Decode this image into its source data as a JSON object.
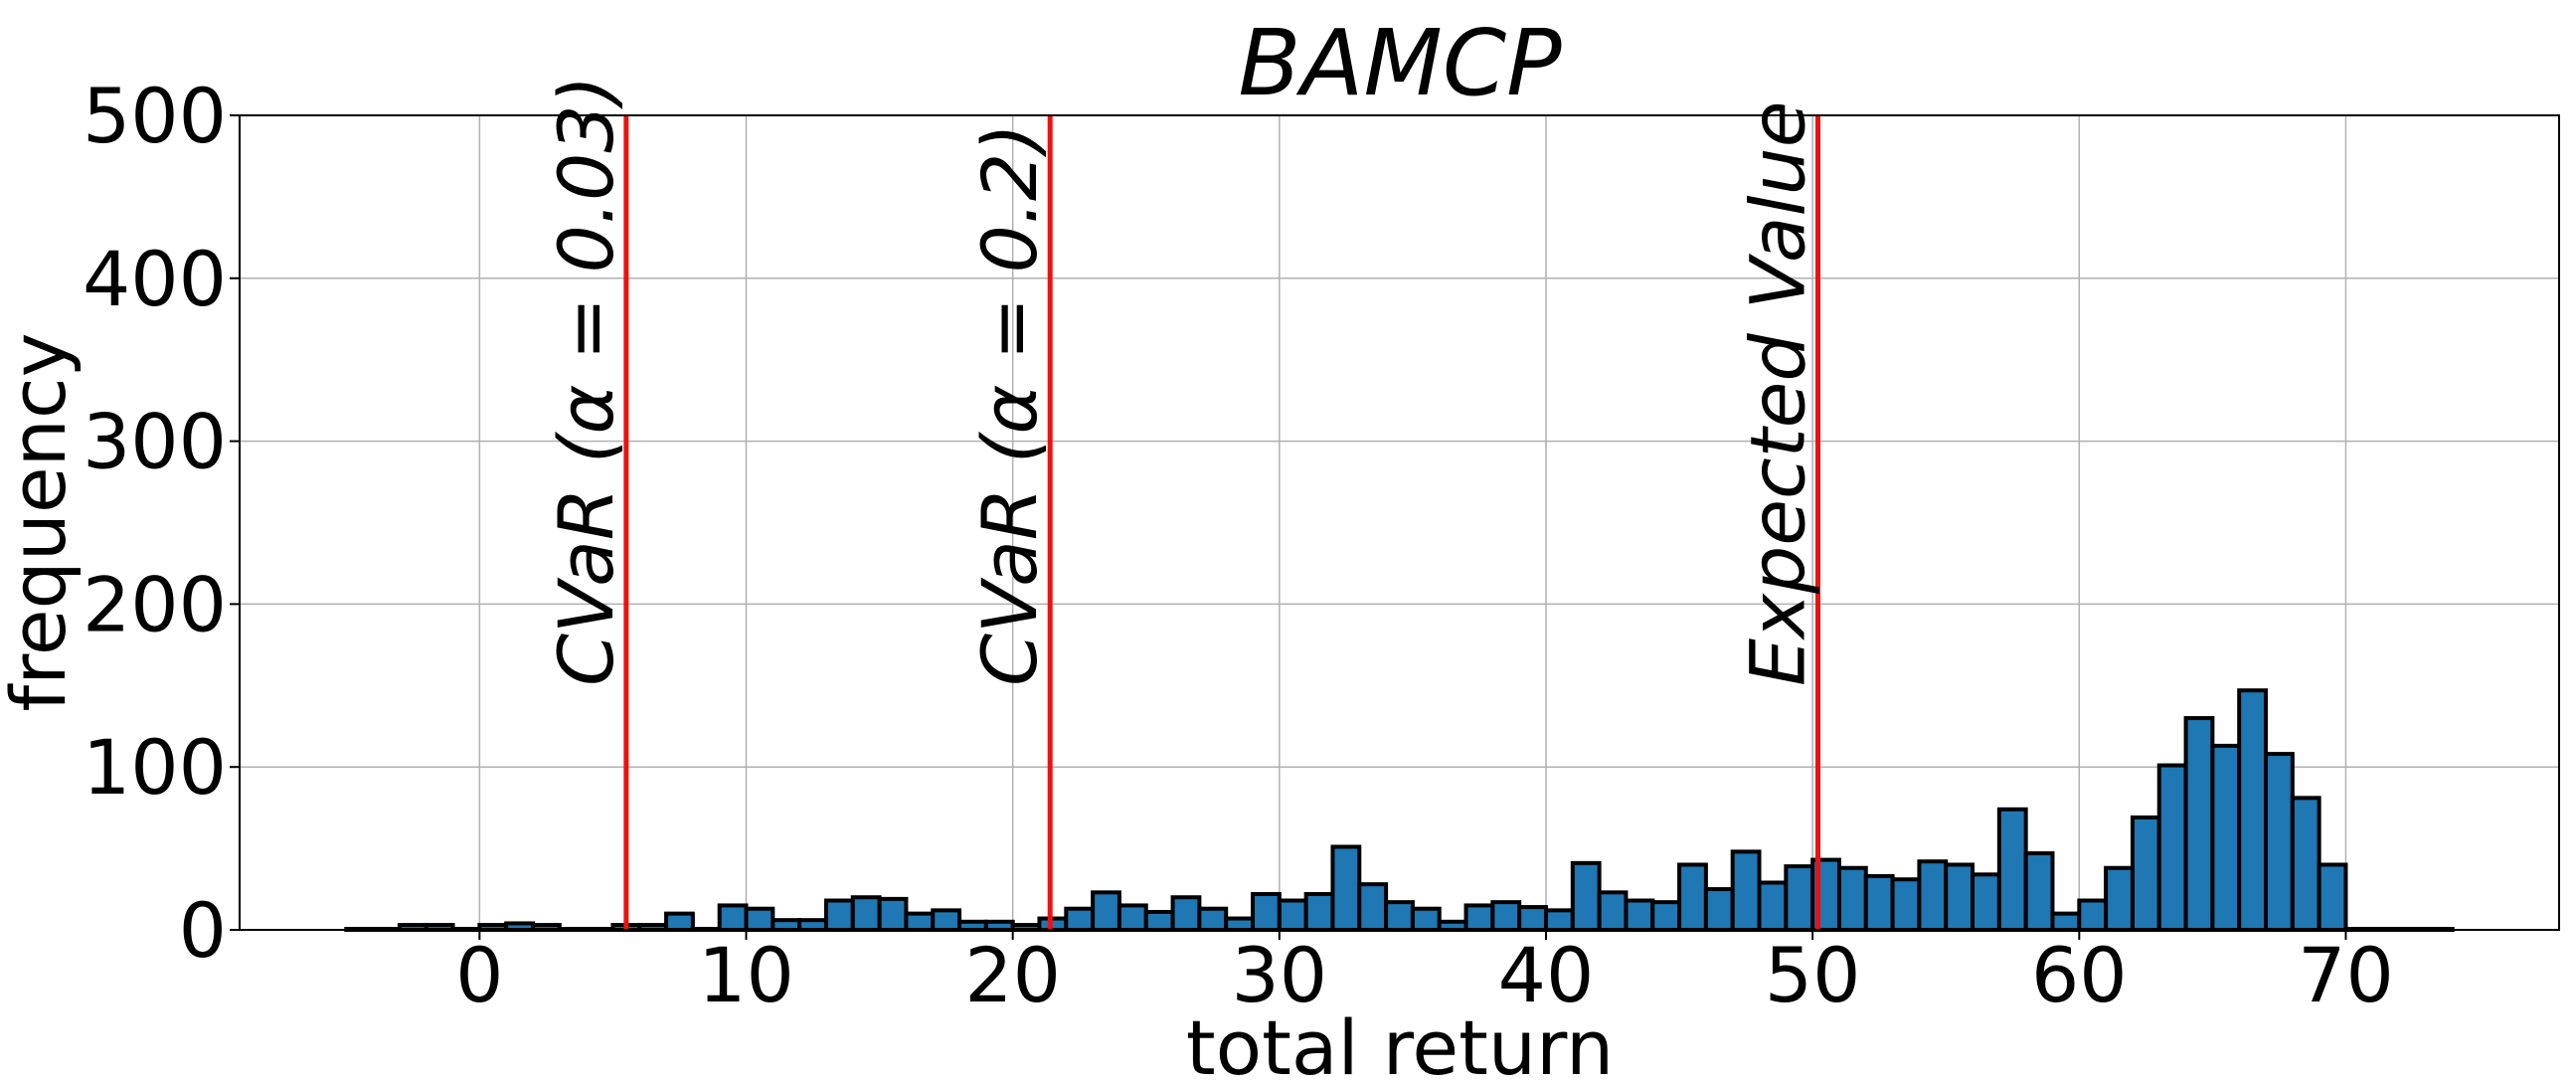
{
  "chart_data": {
    "type": "bar",
    "title": "BAMCP",
    "xlabel": "total return",
    "ylabel": "frequency",
    "xlim": [
      -9,
      78
    ],
    "ylim": [
      0,
      500
    ],
    "xticks": [
      0,
      10,
      20,
      30,
      40,
      50,
      60,
      70
    ],
    "yticks": [
      0,
      100,
      200,
      300,
      400,
      500
    ],
    "grid": true,
    "bar_color": "#1f77b4",
    "bar_edge_color": "#000000",
    "vline_color": "#ee1111",
    "bin_width": 1.0,
    "bins": [
      {
        "x": -5.0,
        "value": 0
      },
      {
        "x": -4.0,
        "value": 0
      },
      {
        "x": -3.0,
        "value": 3
      },
      {
        "x": -2.0,
        "value": 3
      },
      {
        "x": -1.0,
        "value": 0
      },
      {
        "x": 0.0,
        "value": 3
      },
      {
        "x": 1.0,
        "value": 4
      },
      {
        "x": 2.0,
        "value": 3
      },
      {
        "x": 3.0,
        "value": 0
      },
      {
        "x": 4.0,
        "value": 0
      },
      {
        "x": 5.0,
        "value": 3
      },
      {
        "x": 6.0,
        "value": 3
      },
      {
        "x": 7.0,
        "value": 10
      },
      {
        "x": 8.0,
        "value": 0
      },
      {
        "x": 9.0,
        "value": 15
      },
      {
        "x": 10.0,
        "value": 13
      },
      {
        "x": 11.0,
        "value": 6
      },
      {
        "x": 12.0,
        "value": 6
      },
      {
        "x": 13.0,
        "value": 18
      },
      {
        "x": 14.0,
        "value": 20
      },
      {
        "x": 15.0,
        "value": 19
      },
      {
        "x": 16.0,
        "value": 10
      },
      {
        "x": 17.0,
        "value": 12
      },
      {
        "x": 18.0,
        "value": 5
      },
      {
        "x": 19.0,
        "value": 5
      },
      {
        "x": 20.0,
        "value": 3
      },
      {
        "x": 21.0,
        "value": 7
      },
      {
        "x": 22.0,
        "value": 13
      },
      {
        "x": 23.0,
        "value": 23
      },
      {
        "x": 24.0,
        "value": 15
      },
      {
        "x": 25.0,
        "value": 11
      },
      {
        "x": 26.0,
        "value": 20
      },
      {
        "x": 27.0,
        "value": 13
      },
      {
        "x": 28.0,
        "value": 7
      },
      {
        "x": 29.0,
        "value": 22
      },
      {
        "x": 30.0,
        "value": 18
      },
      {
        "x": 31.0,
        "value": 22
      },
      {
        "x": 32.0,
        "value": 51
      },
      {
        "x": 33.0,
        "value": 28
      },
      {
        "x": 34.0,
        "value": 17
      },
      {
        "x": 35.0,
        "value": 13
      },
      {
        "x": 36.0,
        "value": 5
      },
      {
        "x": 37.0,
        "value": 15
      },
      {
        "x": 38.0,
        "value": 17
      },
      {
        "x": 39.0,
        "value": 14
      },
      {
        "x": 40.0,
        "value": 12
      },
      {
        "x": 41.0,
        "value": 41
      },
      {
        "x": 42.0,
        "value": 23
      },
      {
        "x": 43.0,
        "value": 18
      },
      {
        "x": 44.0,
        "value": 17
      },
      {
        "x": 45.0,
        "value": 40
      },
      {
        "x": 46.0,
        "value": 25
      },
      {
        "x": 47.0,
        "value": 48
      },
      {
        "x": 48.0,
        "value": 29
      },
      {
        "x": 49.0,
        "value": 39
      },
      {
        "x": 50.0,
        "value": 43
      },
      {
        "x": 51.0,
        "value": 38
      },
      {
        "x": 52.0,
        "value": 33
      },
      {
        "x": 53.0,
        "value": 31
      },
      {
        "x": 54.0,
        "value": 42
      },
      {
        "x": 55.0,
        "value": 40
      },
      {
        "x": 56.0,
        "value": 34
      },
      {
        "x": 57.0,
        "value": 74
      },
      {
        "x": 58.0,
        "value": 47
      },
      {
        "x": 59.0,
        "value": 10
      },
      {
        "x": 60.0,
        "value": 18
      },
      {
        "x": 61.0,
        "value": 38
      },
      {
        "x": 62.0,
        "value": 69
      },
      {
        "x": 63.0,
        "value": 101
      },
      {
        "x": 64.0,
        "value": 130
      },
      {
        "x": 65.0,
        "value": 113
      },
      {
        "x": 66.0,
        "value": 147
      },
      {
        "x": 67.0,
        "value": 108
      },
      {
        "x": 68.0,
        "value": 81
      },
      {
        "x": 69.0,
        "value": 40
      },
      {
        "x": 70.0,
        "value": 0
      },
      {
        "x": 71.0,
        "value": 0
      },
      {
        "x": 72.0,
        "value": 0
      },
      {
        "x": 73.0,
        "value": 0
      }
    ],
    "vlines": [
      {
        "x": 5.5,
        "label": "CVaR (α = 0.03)"
      },
      {
        "x": 21.4,
        "label": "CVaR (α = 0.2)"
      },
      {
        "x": 50.2,
        "label": "Expected Value"
      }
    ]
  }
}
